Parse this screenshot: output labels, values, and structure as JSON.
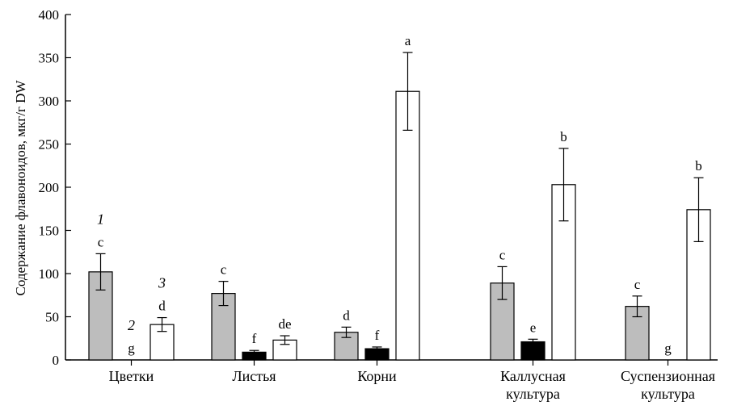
{
  "chart_data": {
    "type": "bar",
    "ylabel": "Содержание флавоноидов, мкг/г DW",
    "ylim": [
      0,
      400
    ],
    "yticks": [
      0,
      50,
      100,
      150,
      200,
      250,
      300,
      350,
      400
    ],
    "grid": false,
    "categories": [
      [
        "Цветки"
      ],
      [
        "Листья"
      ],
      [
        "Корни"
      ],
      [
        "Каллусная",
        "культура"
      ],
      [
        "Суспензионная",
        "культура"
      ]
    ],
    "series_numbers": [
      "1",
      "2",
      "3"
    ],
    "series_colors": [
      "#bdbdbd",
      "#000000",
      "#ffffff"
    ],
    "series": [
      {
        "values": [
          102,
          77,
          32,
          89,
          62
        ],
        "errors": [
          21,
          14,
          6,
          19,
          12
        ],
        "letters": [
          "c",
          "c",
          "d",
          "c",
          "c"
        ]
      },
      {
        "values": [
          0,
          9,
          13,
          21,
          0
        ],
        "errors": [
          0,
          2,
          2,
          3,
          0
        ],
        "letters": [
          "g",
          "f",
          "f",
          "e",
          "g"
        ]
      },
      {
        "values": [
          41,
          23,
          311,
          203,
          174
        ],
        "errors": [
          8,
          5,
          45,
          42,
          37
        ],
        "letters": [
          "d",
          "de",
          "a",
          "b",
          "b"
        ]
      }
    ]
  }
}
